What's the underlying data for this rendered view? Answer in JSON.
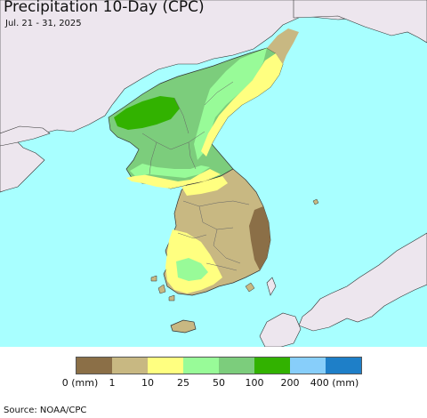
{
  "header": {
    "title": "Precipitation 10-Day (CPC)",
    "date_range": "Jul. 21 - 31, 2025"
  },
  "legend": {
    "colors": [
      "#8b6f47",
      "#c8b882",
      "#ffff80",
      "#98fb98",
      "#7ccd7c",
      "#32b200",
      "#87cefa",
      "#1e7fc8"
    ],
    "ticks": [
      "0 (mm)",
      "1",
      "10",
      "25",
      "50",
      "100",
      "200",
      "400 (mm)"
    ]
  },
  "footer": {
    "source": "Source: NOAA/CPC"
  },
  "map_colors": {
    "sea": "#a8ffff",
    "foreign_land": "#ede6ee",
    "boundary": "#555555"
  }
}
